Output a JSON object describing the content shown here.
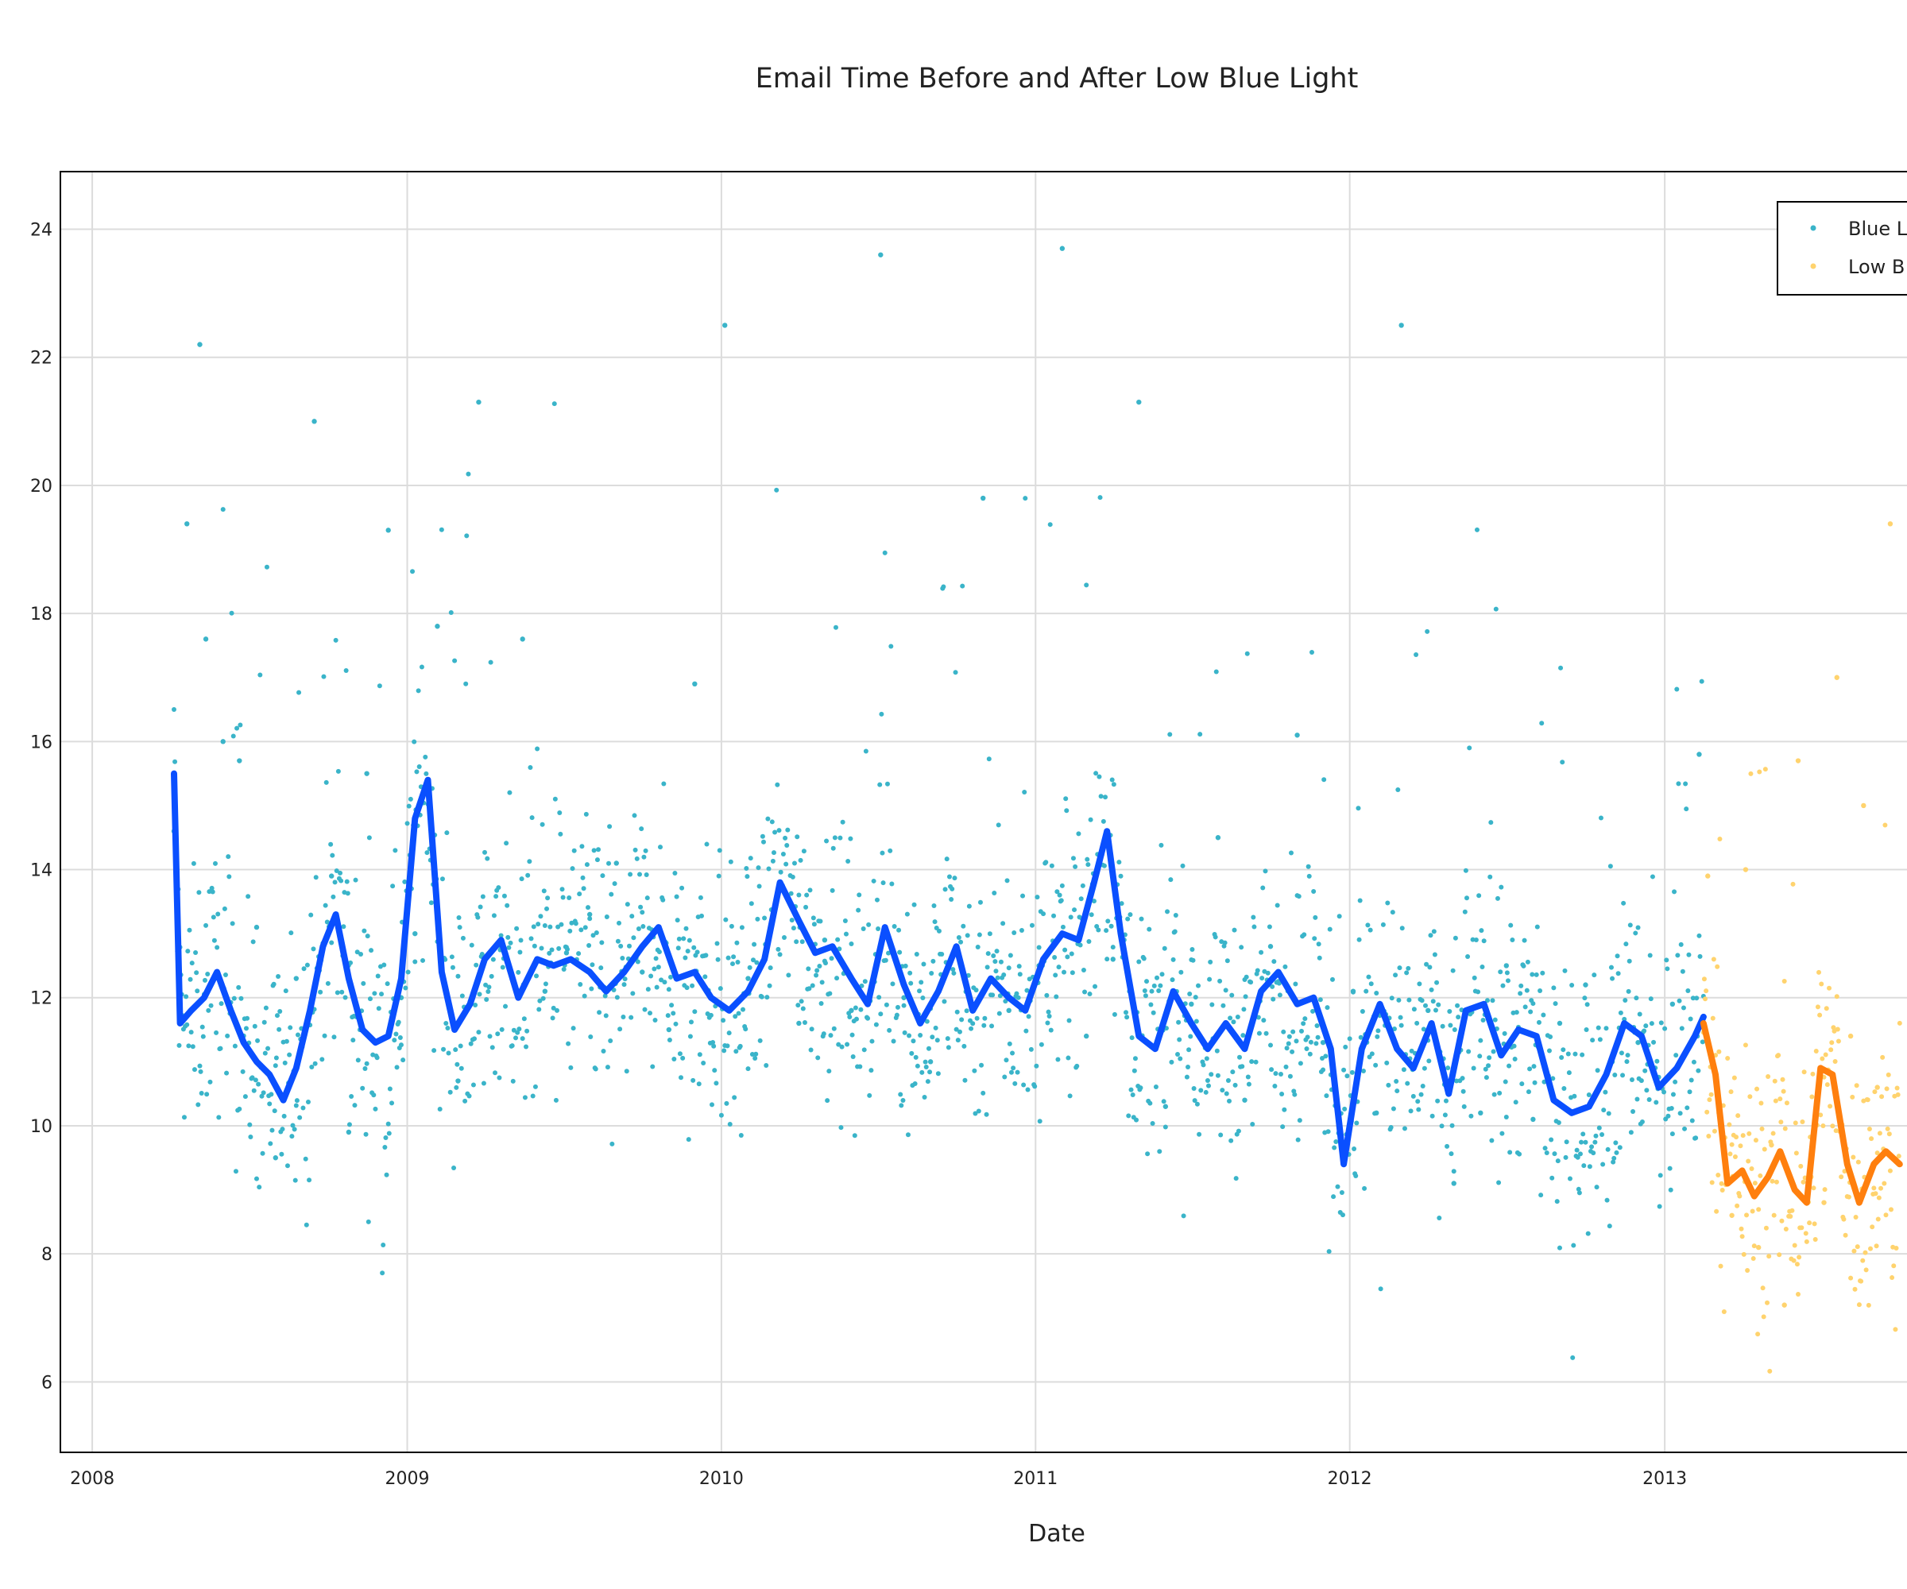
{
  "chart_data": {
    "type": "scatter",
    "title": "Email Time Before and After Low Blue Light",
    "xlabel": "Date",
    "ylabel": "",
    "x_ticks": [
      "2008",
      "2009",
      "2010",
      "2011",
      "2012",
      "2013"
    ],
    "y_ticks": [
      "6",
      "8",
      "10",
      "12",
      "14",
      "16",
      "18",
      "20",
      "22",
      "24"
    ],
    "xlim": [
      "2007-11-25",
      "2013-10-15"
    ],
    "ylim": [
      4.9,
      24.9
    ],
    "grid": true,
    "legend_position": "top-right",
    "legend": [
      "Blue L",
      "Low B"
    ],
    "colors": {
      "blue_points": "#3ab4c9",
      "blue_line": "#0a4fff",
      "low_points": "#ffd36e",
      "low_line": "#ff7f0e"
    },
    "series": [
      {
        "name": "Blue L",
        "kind": "points",
        "note_density": "dense",
        "x": [
          "2008-04-05",
          "2008-04-20",
          "2008-05-05",
          "2008-05-12",
          "2008-06-01",
          "2008-06-20",
          "2008-07-10",
          "2008-08-01",
          "2008-08-25",
          "2008-09-15",
          "2008-10-05",
          "2008-10-25",
          "2008-11-15",
          "2008-12-10",
          "2008-12-25",
          "2009-01-10",
          "2009-02-05",
          "2009-03-01",
          "2009-03-25",
          "2009-04-20",
          "2009-05-15",
          "2009-06-10",
          "2009-07-05",
          "2009-08-01",
          "2009-09-01",
          "2009-10-01",
          "2009-11-01",
          "2009-12-01",
          "2010-01-05",
          "2010-02-01",
          "2010-03-01",
          "2010-04-01",
          "2010-05-01",
          "2010-06-01",
          "2010-07-05",
          "2010-08-01",
          "2010-09-01",
          "2010-10-01",
          "2010-11-01",
          "2010-12-01",
          "2011-01-05",
          "2011-02-01",
          "2011-03-01",
          "2011-04-01",
          "2011-05-01",
          "2011-06-01",
          "2011-07-01",
          "2011-08-01",
          "2011-09-01",
          "2011-10-01",
          "2011-11-01",
          "2011-12-01",
          "2012-01-05",
          "2012-02-01",
          "2012-03-01",
          "2012-04-01",
          "2012-05-01",
          "2012-06-01",
          "2012-07-01",
          "2012-08-01",
          "2012-09-01",
          "2012-10-01",
          "2012-11-01",
          "2012-12-01",
          "2013-01-10",
          "2013-02-10"
        ],
        "y": [
          14.6,
          19.4,
          22.2,
          17.6,
          16.0,
          15.7,
          13.1,
          9.5,
          12.3,
          21.0,
          13.9,
          9.9,
          15.5,
          19.3,
          12.0,
          13.0,
          17.8,
          10.7,
          21.3,
          12.8,
          17.6,
          12.1,
          12.7,
          13.3,
          14.1,
          12.4,
          11.5,
          16.9,
          22.5,
          12.3,
          13.2,
          11.6,
          12.9,
          11.8,
          23.6,
          12.0,
          11.0,
          12.7,
          19.8,
          11.8,
          12.5,
          23.7,
          11.4,
          12.6,
          21.3,
          10.3,
          11.9,
          14.5,
          10.4,
          12.8,
          16.1,
          11.3,
          12.1,
          10.2,
          22.5,
          11.8,
          9.1,
          10.2,
          12.5,
          10.1,
          11.6,
          12.2,
          11.0,
          11.3,
          11.9,
          15.8
        ]
      },
      {
        "name": "Low B",
        "kind": "points",
        "x": [
          "2013-02-20",
          "2013-03-05",
          "2013-03-20",
          "2013-04-05",
          "2013-04-20",
          "2013-05-05",
          "2013-05-20",
          "2013-06-05",
          "2013-06-20",
          "2013-07-05",
          "2013-07-20",
          "2013-08-05",
          "2013-08-20",
          "2013-09-05",
          "2013-09-20"
        ],
        "y": [
          13.9,
          10.2,
          8.6,
          14.0,
          8.1,
          9.7,
          7.2,
          15.7,
          9.2,
          8.8,
          17.0,
          11.4,
          15.0,
          10.6,
          19.4
        ]
      },
      {
        "name": "",
        "kind": "line",
        "x": [
          "2008-04-05",
          "2008-04-12",
          "2008-04-25",
          "2008-05-10",
          "2008-05-25",
          "2008-06-10",
          "2008-06-25",
          "2008-07-10",
          "2008-07-25",
          "2008-08-10",
          "2008-08-25",
          "2008-09-10",
          "2008-09-25",
          "2008-10-10",
          "2008-10-25",
          "2008-11-10",
          "2008-11-25",
          "2008-12-10",
          "2008-12-25",
          "2009-01-10",
          "2009-01-25",
          "2009-02-10",
          "2009-02-25",
          "2009-03-15",
          "2009-04-01",
          "2009-04-20",
          "2009-05-10",
          "2009-06-01",
          "2009-06-20",
          "2009-07-10",
          "2009-08-01",
          "2009-08-20",
          "2009-09-10",
          "2009-10-01",
          "2009-10-20",
          "2009-11-10",
          "2009-12-01",
          "2009-12-20",
          "2010-01-10",
          "2010-02-01",
          "2010-02-20",
          "2010-03-10",
          "2010-04-01",
          "2010-04-20",
          "2010-05-10",
          "2010-06-01",
          "2010-06-20",
          "2010-07-10",
          "2010-08-01",
          "2010-08-20",
          "2010-09-10",
          "2010-10-01",
          "2010-10-20",
          "2010-11-10",
          "2010-12-01",
          "2010-12-20",
          "2011-01-10",
          "2011-02-01",
          "2011-02-20",
          "2011-03-10",
          "2011-03-25",
          "2011-04-10",
          "2011-05-01",
          "2011-05-20",
          "2011-06-10",
          "2011-07-01",
          "2011-07-20",
          "2011-08-10",
          "2011-09-01",
          "2011-09-20",
          "2011-10-10",
          "2011-11-01",
          "2011-11-20",
          "2011-12-10",
          "2011-12-25",
          "2012-01-15",
          "2012-02-05",
          "2012-02-25",
          "2012-03-15",
          "2012-04-05",
          "2012-04-25",
          "2012-05-15",
          "2012-06-05",
          "2012-06-25",
          "2012-07-15",
          "2012-08-05",
          "2012-08-25",
          "2012-09-15",
          "2012-10-05",
          "2012-10-25",
          "2012-11-15",
          "2012-12-05",
          "2012-12-25",
          "2013-01-15",
          "2013-02-05",
          "2013-02-15"
        ],
        "y": [
          15.5,
          11.6,
          11.8,
          12.0,
          12.4,
          11.8,
          11.3,
          11.0,
          10.8,
          10.4,
          10.9,
          11.8,
          12.8,
          13.3,
          12.3,
          11.5,
          11.3,
          11.4,
          12.3,
          14.8,
          15.4,
          12.4,
          11.5,
          11.9,
          12.6,
          12.9,
          12.0,
          12.6,
          12.5,
          12.6,
          12.4,
          12.1,
          12.4,
          12.8,
          13.1,
          12.3,
          12.4,
          12.0,
          11.8,
          12.1,
          12.6,
          13.8,
          13.2,
          12.7,
          12.8,
          12.3,
          11.9,
          13.1,
          12.2,
          11.6,
          12.1,
          12.8,
          11.8,
          12.3,
          12.0,
          11.8,
          12.6,
          13.0,
          12.9,
          13.8,
          14.6,
          13.0,
          11.4,
          11.2,
          12.1,
          11.6,
          11.2,
          11.6,
          11.2,
          12.1,
          12.4,
          11.9,
          12.0,
          11.2,
          9.4,
          11.2,
          11.9,
          11.2,
          10.9,
          11.6,
          10.5,
          11.8,
          11.9,
          11.1,
          11.5,
          11.4,
          10.4,
          10.2,
          10.3,
          10.8,
          11.6,
          11.4,
          10.6,
          10.9,
          11.4,
          11.7
        ]
      },
      {
        "name": "",
        "kind": "line",
        "x": [
          "2013-02-15",
          "2013-03-01",
          "2013-03-15",
          "2013-04-01",
          "2013-04-15",
          "2013-05-01",
          "2013-05-15",
          "2013-06-01",
          "2013-06-15",
          "2013-07-01",
          "2013-07-15",
          "2013-08-01",
          "2013-08-15",
          "2013-09-01",
          "2013-09-15",
          "2013-10-01"
        ],
        "y": [
          11.6,
          10.8,
          9.1,
          9.3,
          8.9,
          9.2,
          9.6,
          9.0,
          8.8,
          10.9,
          10.8,
          9.4,
          8.8,
          9.4,
          9.6,
          9.4
        ]
      }
    ]
  }
}
